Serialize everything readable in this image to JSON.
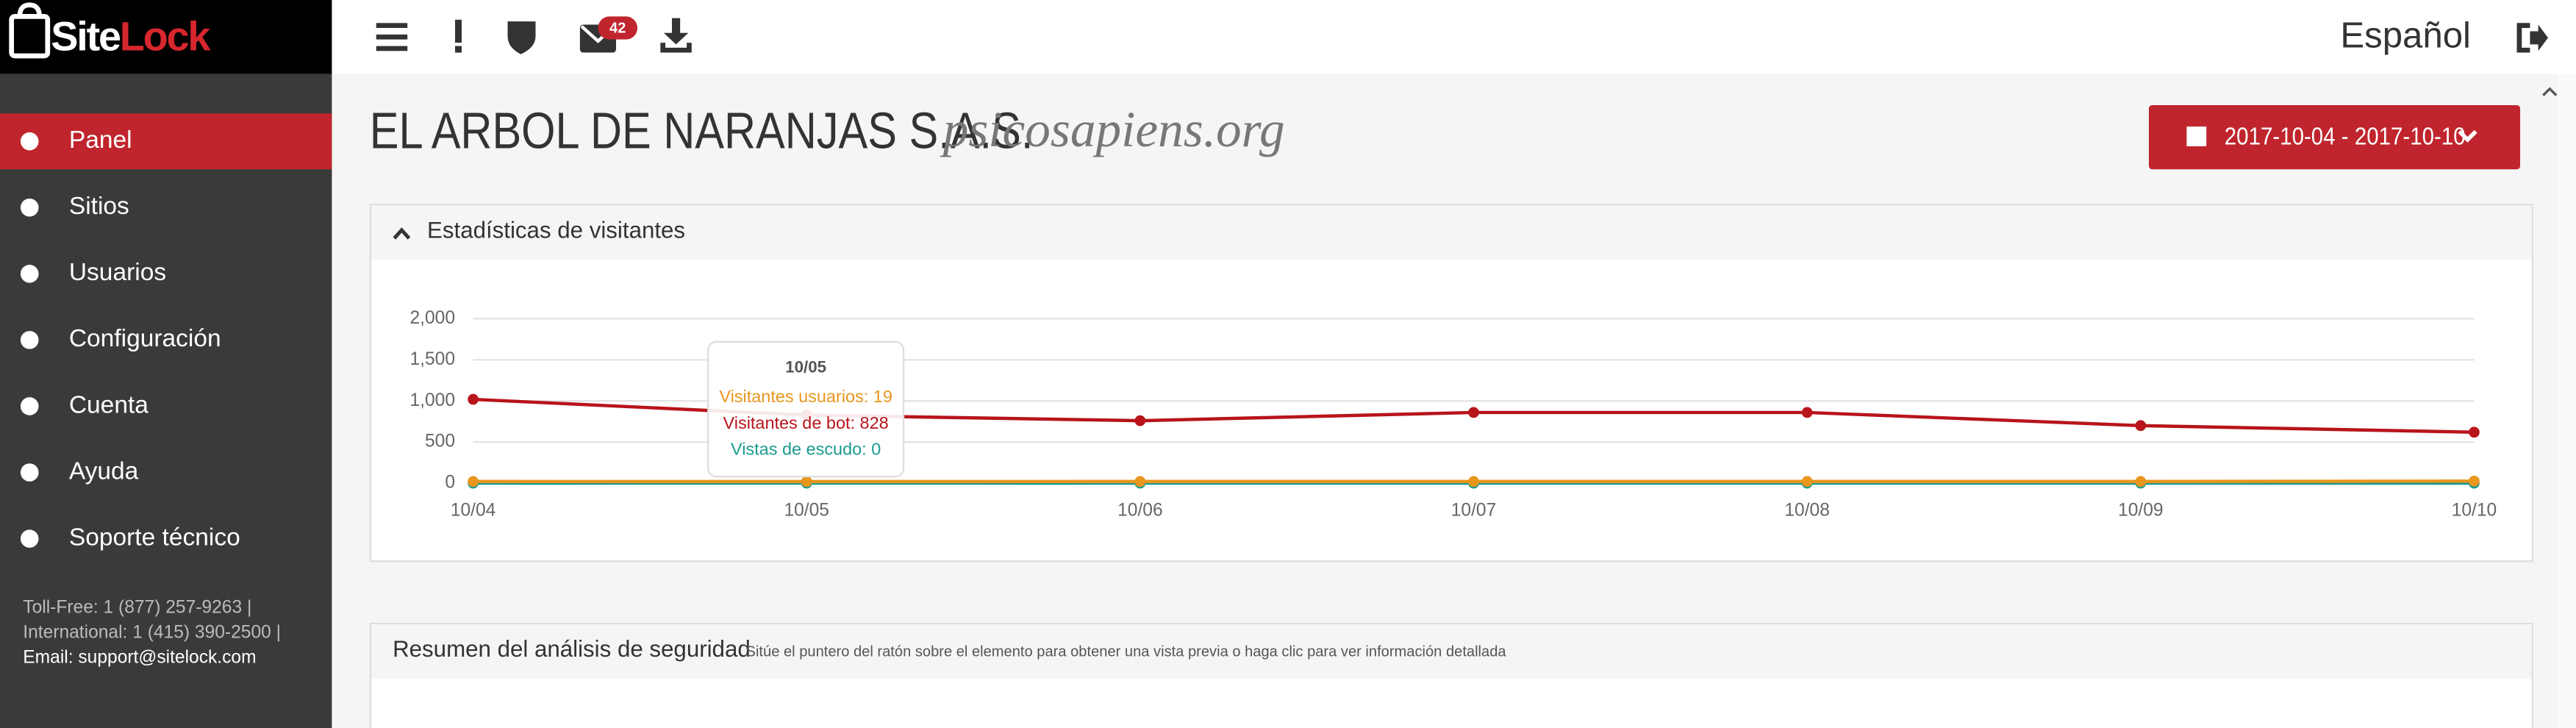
{
  "logo": [
    "Site",
    "Lock"
  ],
  "nav": [
    "Panel",
    "Sitios",
    "Usuarios",
    "Configuración",
    "Cuenta",
    "Ayuda",
    "Soporte técnico"
  ],
  "contact": [
    "Toll-Free: 1 (877) 257-9263 |",
    "International: 1 (415) 390-2500 |",
    "Email: support@sitelock.com"
  ],
  "header": {
    "badge": "42",
    "language": "Español"
  },
  "page_title": {
    "company": "EL ARBOL DE NARANJAS S.A.S.",
    "site": "psicosapiens.org",
    "date_range": "2017-10-04 - 2017-10-10"
  },
  "panels": [
    {
      "title": "Estadísticas de visitantes"
    },
    {
      "title": "Resumen del análisis de seguridad",
      "hint": "Sitúe el puntero del ratón sobre el elemento para obtener una vista previa o haga clic para ver información detallada"
    }
  ],
  "chart_data": {
    "type": "line",
    "categories": [
      "10/04",
      "10/05",
      "10/06",
      "10/07",
      "10/08",
      "10/09",
      "10/10"
    ],
    "series": [
      {
        "name": "Vistas de escudo",
        "color": "#1a9a8f",
        "values": [
          0,
          0,
          0,
          0,
          0,
          0,
          0
        ]
      },
      {
        "name": "Visitantes usuarios",
        "color": "#e8961e",
        "values": [
          20,
          19,
          20,
          20,
          20,
          20,
          25
        ]
      },
      {
        "name": "Visitantes de bot",
        "color": "#b8141b",
        "values": [
          1020,
          828,
          760,
          860,
          860,
          700,
          620
        ]
      }
    ],
    "ylim": [
      0,
      2000
    ],
    "yticks": [
      0,
      500,
      {
        "value": 1000,
        "label": "1,000"
      },
      {
        "value": 1500,
        "label": "1,500"
      },
      {
        "value": 2000,
        "label": "2,000"
      }
    ],
    "grid": true,
    "tooltip": {
      "title": "10/05",
      "lines": [
        "Visitantes usuarios: 19",
        "Visitantes de bot: 828",
        "Vistas de escudo: 0"
      ],
      "colors": [
        "#e8961e",
        "#b8141b",
        "#1a9a8f"
      ]
    }
  }
}
